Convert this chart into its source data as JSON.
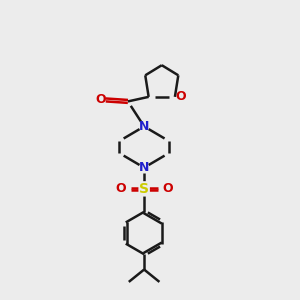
{
  "bg_color": "#ececec",
  "bond_color": "#1a1a1a",
  "N_color": "#2020cc",
  "O_color": "#cc0000",
  "S_color": "#cccc00",
  "line_width": 1.8,
  "figsize": [
    3.0,
    3.0
  ],
  "dpi": 100,
  "xlim": [
    0,
    10
  ],
  "ylim": [
    0,
    10
  ]
}
